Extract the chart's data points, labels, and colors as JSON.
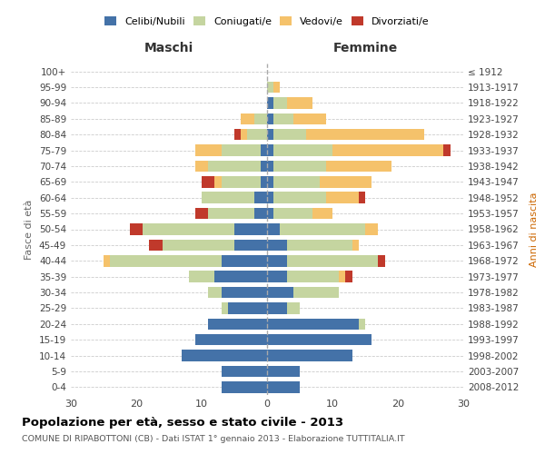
{
  "age_groups": [
    "100+",
    "95-99",
    "90-94",
    "85-89",
    "80-84",
    "75-79",
    "70-74",
    "65-69",
    "60-64",
    "55-59",
    "50-54",
    "45-49",
    "40-44",
    "35-39",
    "30-34",
    "25-29",
    "20-24",
    "15-19",
    "10-14",
    "5-9",
    "0-4"
  ],
  "birth_years": [
    "≤ 1912",
    "1913-1917",
    "1918-1922",
    "1923-1927",
    "1928-1932",
    "1933-1937",
    "1938-1942",
    "1943-1947",
    "1948-1952",
    "1953-1957",
    "1958-1962",
    "1963-1967",
    "1968-1972",
    "1973-1977",
    "1978-1982",
    "1983-1987",
    "1988-1992",
    "1993-1997",
    "1998-2002",
    "2003-2007",
    "2008-2012"
  ],
  "males": {
    "celibi": [
      0,
      0,
      0,
      0,
      0,
      1,
      1,
      1,
      2,
      2,
      5,
      5,
      7,
      8,
      7,
      6,
      9,
      11,
      13,
      7,
      7
    ],
    "coniugati": [
      0,
      0,
      0,
      2,
      3,
      6,
      8,
      6,
      8,
      7,
      14,
      11,
      17,
      4,
      2,
      1,
      0,
      0,
      0,
      0,
      0
    ],
    "vedovi": [
      0,
      0,
      0,
      2,
      1,
      4,
      2,
      1,
      0,
      0,
      0,
      0,
      1,
      0,
      0,
      0,
      0,
      0,
      0,
      0,
      0
    ],
    "divorziati": [
      0,
      0,
      0,
      0,
      1,
      0,
      0,
      2,
      0,
      2,
      2,
      2,
      0,
      0,
      0,
      0,
      0,
      0,
      0,
      0,
      0
    ]
  },
  "females": {
    "nubili": [
      0,
      0,
      1,
      1,
      1,
      1,
      1,
      1,
      1,
      1,
      2,
      3,
      3,
      3,
      4,
      3,
      14,
      16,
      13,
      5,
      5
    ],
    "coniugate": [
      0,
      1,
      2,
      3,
      5,
      9,
      8,
      7,
      8,
      6,
      13,
      10,
      14,
      8,
      7,
      2,
      1,
      0,
      0,
      0,
      0
    ],
    "vedove": [
      0,
      1,
      4,
      5,
      18,
      17,
      10,
      8,
      5,
      3,
      2,
      1,
      0,
      1,
      0,
      0,
      0,
      0,
      0,
      0,
      0
    ],
    "divorziate": [
      0,
      0,
      0,
      0,
      0,
      1,
      0,
      0,
      1,
      0,
      0,
      0,
      1,
      1,
      0,
      0,
      0,
      0,
      0,
      0,
      0
    ]
  },
  "colors": {
    "celibi": "#4472a8",
    "coniugati": "#c5d5a0",
    "vedovi": "#f5c26b",
    "divorziati": "#c0392b"
  },
  "title": "Popolazione per età, sesso e stato civile - 2013",
  "subtitle": "COMUNE DI RIPABOTTONI (CB) - Dati ISTAT 1° gennaio 2013 - Elaborazione TUTTITALIA.IT",
  "xlabel_left": "Maschi",
  "xlabel_right": "Femmine",
  "ylabel_left": "Fasce di età",
  "ylabel_right": "Anni di nascita",
  "xlim": 30,
  "background_color": "#ffffff",
  "grid_color": "#cccccc"
}
